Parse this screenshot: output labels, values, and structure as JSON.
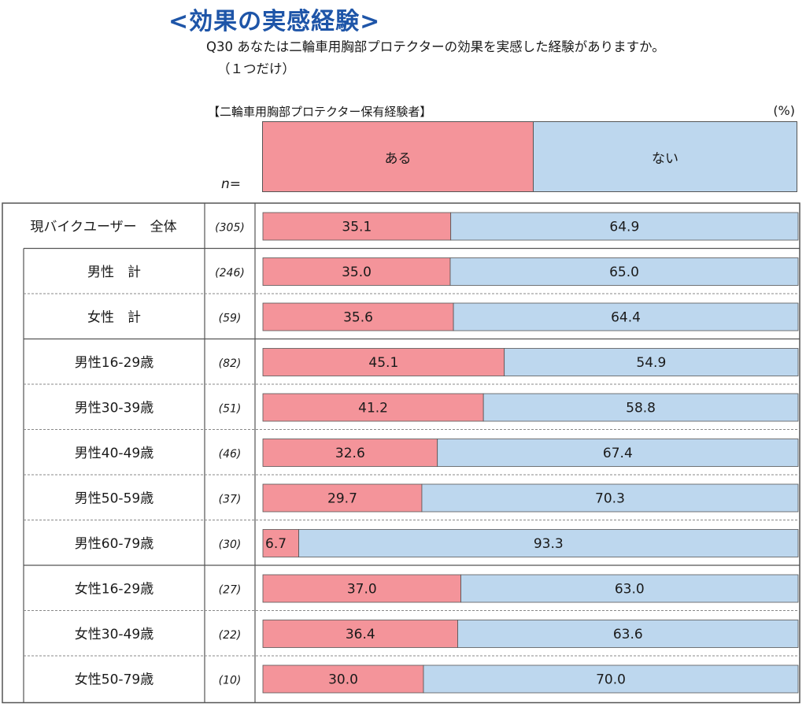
{
  "title": "<効果の実感経験>",
  "question": "Q30  あなたは二輪車用胸部プロテクターの効果を実感した経験がありますか。",
  "question_sub": "（１つだけ）",
  "subset_label": "【二輪車用胸部プロテクター保有経験者】",
  "unit_label": "(%)",
  "n_header": "n=",
  "colors": {
    "aru": "#f4949a",
    "nai": "#bdd7ee",
    "border": "#555555",
    "divider": "#888888"
  },
  "chart_data": {
    "type": "bar",
    "orientation": "horizontal",
    "stacked": true,
    "title": "<効果の実感経験>",
    "xlabel": "",
    "ylabel": "",
    "unit": "%",
    "xlim": [
      0,
      100
    ],
    "categories": [
      "現バイクユーザー　全体",
      "男性　計",
      "女性　計",
      "男性16-29歳",
      "男性30-39歳",
      "男性40-49歳",
      "男性50-59歳",
      "男性60-79歳",
      "女性16-29歳",
      "女性30-49歳",
      "女性50-79歳"
    ],
    "n": [
      "(305)",
      "(246)",
      "(59)",
      "(82)",
      "(51)",
      "(46)",
      "(37)",
      "(30)",
      "(27)",
      "(22)",
      "(10)"
    ],
    "groups": [
      {
        "rows": [
          0
        ],
        "indent": false
      },
      {
        "rows": [
          1,
          2
        ],
        "indent": true
      },
      {
        "rows": [
          3,
          4,
          5,
          6,
          7
        ],
        "indent": true
      },
      {
        "rows": [
          8,
          9,
          10
        ],
        "indent": true
      }
    ],
    "series": [
      {
        "name": "ある",
        "color": "#f4949a",
        "values": [
          35.1,
          35.0,
          35.6,
          45.1,
          41.2,
          32.6,
          29.7,
          6.7,
          37.0,
          36.4,
          30.0
        ]
      },
      {
        "name": "ない",
        "color": "#bdd7ee",
        "values": [
          64.9,
          65.0,
          64.4,
          54.9,
          58.8,
          67.4,
          70.3,
          93.3,
          63.0,
          63.6,
          70.0
        ]
      }
    ]
  }
}
